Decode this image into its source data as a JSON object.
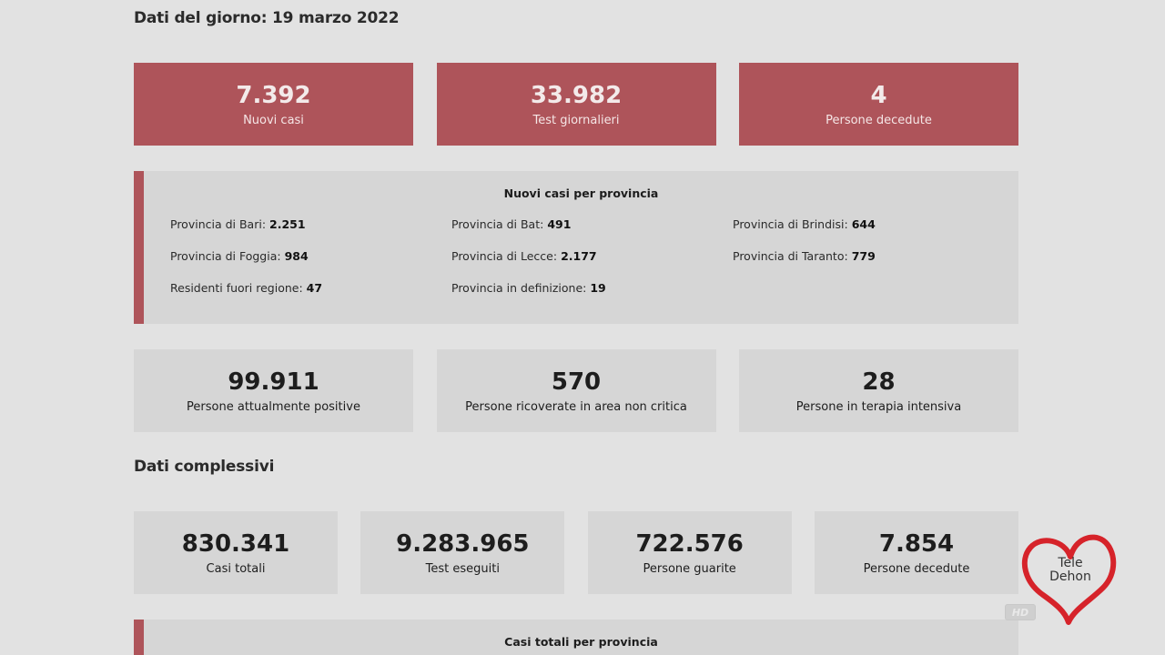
{
  "daily": {
    "title": "Dati del giorno: 19 marzo 2022",
    "top_cards": [
      {
        "value": "7.392",
        "label": "Nuovi casi"
      },
      {
        "value": "33.982",
        "label": "Test giornalieri"
      },
      {
        "value": "4",
        "label": "Persone decedute"
      }
    ],
    "provinces": {
      "title": "Nuovi casi per provincia",
      "items": [
        {
          "label": "Provincia di Bari:",
          "value": "2.251"
        },
        {
          "label": "Provincia di Bat:",
          "value": "491"
        },
        {
          "label": "Provincia di Brindisi:",
          "value": "644"
        },
        {
          "label": "Provincia di Foggia:",
          "value": "984"
        },
        {
          "label": "Provincia di Lecce:",
          "value": "2.177"
        },
        {
          "label": "Provincia di Taranto:",
          "value": "779"
        },
        {
          "label": "Residenti fuori regione:",
          "value": "47"
        },
        {
          "label": "Provincia in definizione:",
          "value": "19"
        }
      ]
    },
    "status_cards": [
      {
        "value": "99.911",
        "label": "Persone attualmente positive"
      },
      {
        "value": "570",
        "label": "Persone ricoverate in area non critica"
      },
      {
        "value": "28",
        "label": "Persone in terapia intensiva"
      }
    ]
  },
  "totals": {
    "title": "Dati complessivi",
    "cards": [
      {
        "value": "830.341",
        "label": "Casi totali"
      },
      {
        "value": "9.283.965",
        "label": "Test eseguiti"
      },
      {
        "value": "722.576",
        "label": "Persone guarite"
      },
      {
        "value": "7.854",
        "label": "Persone decedute"
      }
    ],
    "provinces_title": "Casi totali per provincia"
  },
  "overlay": {
    "logo_line1": "Tele",
    "logo_line2": "Dehon",
    "hd_badge": "HD",
    "logo_color": "#d6232a"
  },
  "colors": {
    "accent_red": "#ae545a",
    "card_grey": "#d6d6d6",
    "background": "#e2e2e2"
  }
}
